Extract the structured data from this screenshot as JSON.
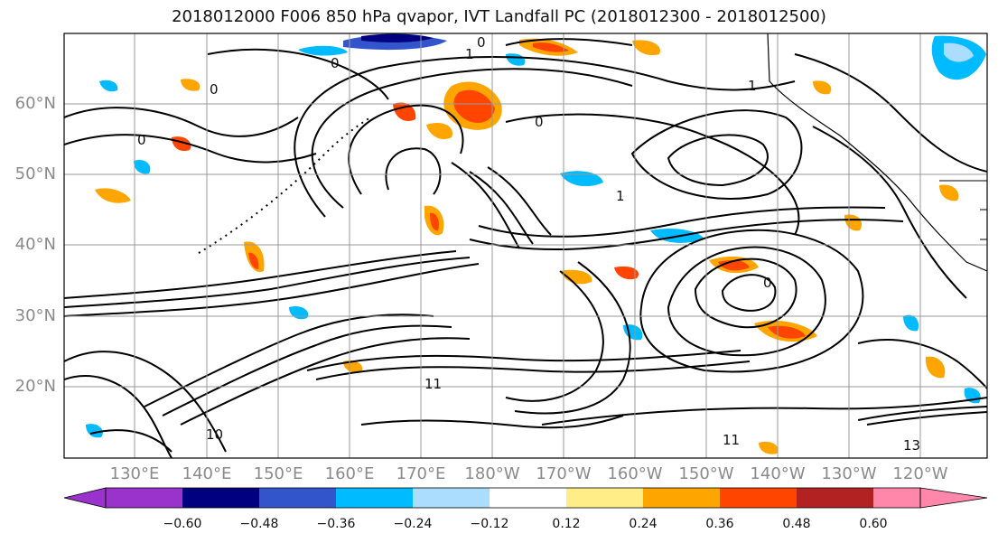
{
  "title": "2018012000 F006 850 hPa qvapor, IVT Landfall PC (2018012300 - 2018012500)",
  "lat_labels": [
    "60°N",
    "50°N",
    "40°N",
    "30°N",
    "20°N"
  ],
  "lon_labels": [
    "130°E",
    "140°E",
    "150°E",
    "160°E",
    "170°E",
    "180°W",
    "170°W",
    "160°W",
    "150°W",
    "140°W",
    "130°W",
    "120°W"
  ],
  "colorbar": {
    "tick_labels": [
      "−0.60",
      "−0.48",
      "−0.36",
      "−0.24",
      "−0.12",
      "0.12",
      "0.24",
      "0.36",
      "0.48",
      "0.60"
    ],
    "colors": [
      "#9933cc",
      "#000080",
      "#3355cc",
      "#00bbff",
      "#aaddff",
      "#ffffff",
      "#ffee88",
      "#ffa500",
      "#ff4500",
      "#b22222",
      "#ff88aa"
    ]
  },
  "contour_labels": [
    "0",
    "1",
    "0",
    "0",
    "0",
    "1",
    "0",
    "0",
    "1",
    "11",
    "10",
    "11",
    "13"
  ]
}
